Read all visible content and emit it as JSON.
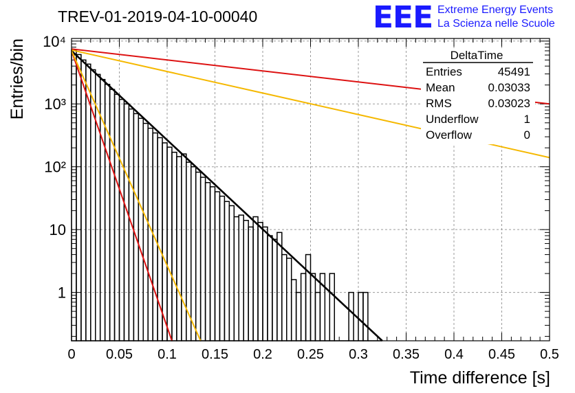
{
  "chart_data": {
    "type": "histogram",
    "title": "TREV-01-2019-04-10-00040",
    "xlabel": "Time difference [s]",
    "ylabel": "Entries/bin",
    "xlim": [
      0,
      0.5
    ],
    "ylim": [
      0.17,
      11000
    ],
    "y_scale": "log",
    "grid": true,
    "x_ticks": [
      0,
      0.05,
      0.1,
      0.15,
      0.2,
      0.25,
      0.3,
      0.35,
      0.4,
      0.45,
      0.5
    ],
    "x_tick_labels": [
      "0",
      "0.05",
      "0.1",
      "0.15",
      "0.2",
      "0.25",
      "0.3",
      "0.35",
      "0.4",
      "0.45",
      "0.5"
    ],
    "y_major_ticks": [
      1,
      10,
      100,
      1000,
      10000
    ],
    "y_tick_labels": [
      "1",
      "10",
      "10²",
      "10³",
      "10⁴"
    ],
    "histogram": {
      "name": "DeltaTime",
      "color": "#000000",
      "bin_width": 0.005,
      "bins": [
        {
          "x0": 0.0,
          "y": 7200
        },
        {
          "x0": 0.005,
          "y": 6100
        },
        {
          "x0": 0.01,
          "y": 5000
        },
        {
          "x0": 0.015,
          "y": 4300
        },
        {
          "x0": 0.02,
          "y": 3500
        },
        {
          "x0": 0.025,
          "y": 2950
        },
        {
          "x0": 0.03,
          "y": 2450
        },
        {
          "x0": 0.035,
          "y": 2050
        },
        {
          "x0": 0.04,
          "y": 1700
        },
        {
          "x0": 0.045,
          "y": 1420
        },
        {
          "x0": 0.05,
          "y": 1180
        },
        {
          "x0": 0.055,
          "y": 1000
        },
        {
          "x0": 0.06,
          "y": 830
        },
        {
          "x0": 0.065,
          "y": 700
        },
        {
          "x0": 0.07,
          "y": 590
        },
        {
          "x0": 0.075,
          "y": 490
        },
        {
          "x0": 0.08,
          "y": 410
        },
        {
          "x0": 0.085,
          "y": 345
        },
        {
          "x0": 0.09,
          "y": 290
        },
        {
          "x0": 0.095,
          "y": 240
        },
        {
          "x0": 0.1,
          "y": 205
        },
        {
          "x0": 0.105,
          "y": 170
        },
        {
          "x0": 0.11,
          "y": 145
        },
        {
          "x0": 0.115,
          "y": 160
        },
        {
          "x0": 0.12,
          "y": 118
        },
        {
          "x0": 0.125,
          "y": 100
        },
        {
          "x0": 0.13,
          "y": 82
        },
        {
          "x0": 0.135,
          "y": 68
        },
        {
          "x0": 0.14,
          "y": 56
        },
        {
          "x0": 0.145,
          "y": 48
        },
        {
          "x0": 0.15,
          "y": 40
        },
        {
          "x0": 0.155,
          "y": 34
        },
        {
          "x0": 0.16,
          "y": 28
        },
        {
          "x0": 0.165,
          "y": 24
        },
        {
          "x0": 0.17,
          "y": 16
        },
        {
          "x0": 0.175,
          "y": 17
        },
        {
          "x0": 0.18,
          "y": 14
        },
        {
          "x0": 0.185,
          "y": 11
        },
        {
          "x0": 0.19,
          "y": 16
        },
        {
          "x0": 0.195,
          "y": 13
        },
        {
          "x0": 0.2,
          "y": 11
        },
        {
          "x0": 0.205,
          "y": 8
        },
        {
          "x0": 0.21,
          "y": 7
        },
        {
          "x0": 0.215,
          "y": 9
        },
        {
          "x0": 0.22,
          "y": 4
        },
        {
          "x0": 0.225,
          "y": 3.5
        },
        {
          "x0": 0.23,
          "y": 1.6
        },
        {
          "x0": 0.235,
          "y": 1
        },
        {
          "x0": 0.24,
          "y": 2
        },
        {
          "x0": 0.245,
          "y": 4
        },
        {
          "x0": 0.25,
          "y": 2
        },
        {
          "x0": 0.255,
          "y": 1
        },
        {
          "x0": 0.26,
          "y": 2
        },
        {
          "x0": 0.265,
          "y": 0.1
        },
        {
          "x0": 0.27,
          "y": 2
        },
        {
          "x0": 0.275,
          "y": 0.1
        },
        {
          "x0": 0.28,
          "y": 0.1
        },
        {
          "x0": 0.285,
          "y": 0.1
        },
        {
          "x0": 0.29,
          "y": 1
        },
        {
          "x0": 0.295,
          "y": 0.1
        },
        {
          "x0": 0.3,
          "y": 1
        },
        {
          "x0": 0.305,
          "y": 1
        },
        {
          "x0": 0.31,
          "y": 0.1
        },
        {
          "x0": 0.315,
          "y": 0.1
        },
        {
          "x0": 0.32,
          "y": 0.1
        }
      ]
    },
    "lines": [
      {
        "color": "#000000",
        "x_start": 0,
        "y_start": 7000,
        "x_end": 0.325,
        "y_end": 0.17
      },
      {
        "color": "#dd1111",
        "x_start": 0,
        "y_start": 7500,
        "x_end": 0.5,
        "y_end": 1000
      },
      {
        "color": "#f5b800",
        "x_start": 0,
        "y_start": 7200,
        "x_end": 0.5,
        "y_end": 140
      },
      {
        "color": "#dd1111",
        "x_start": 0,
        "y_start": 7000,
        "x_end": 0.105,
        "y_end": 0.17
      },
      {
        "color": "#f5b800",
        "x_start": 0,
        "y_start": 7000,
        "x_end": 0.135,
        "y_end": 0.17
      }
    ],
    "stats_box": {
      "title": "DeltaTime",
      "rows": [
        {
          "label": "Entries",
          "value": "45491"
        },
        {
          "label": "Mean",
          "value": "0.03033"
        },
        {
          "label": "RMS",
          "value": "0.03023"
        },
        {
          "label": "Underflow",
          "value": "1"
        },
        {
          "label": "Overflow",
          "value": "0"
        }
      ]
    }
  },
  "logo": {
    "mark": "EEE",
    "line1": "Extreme Energy Events",
    "line2": "La Scienza nelle Scuole"
  }
}
